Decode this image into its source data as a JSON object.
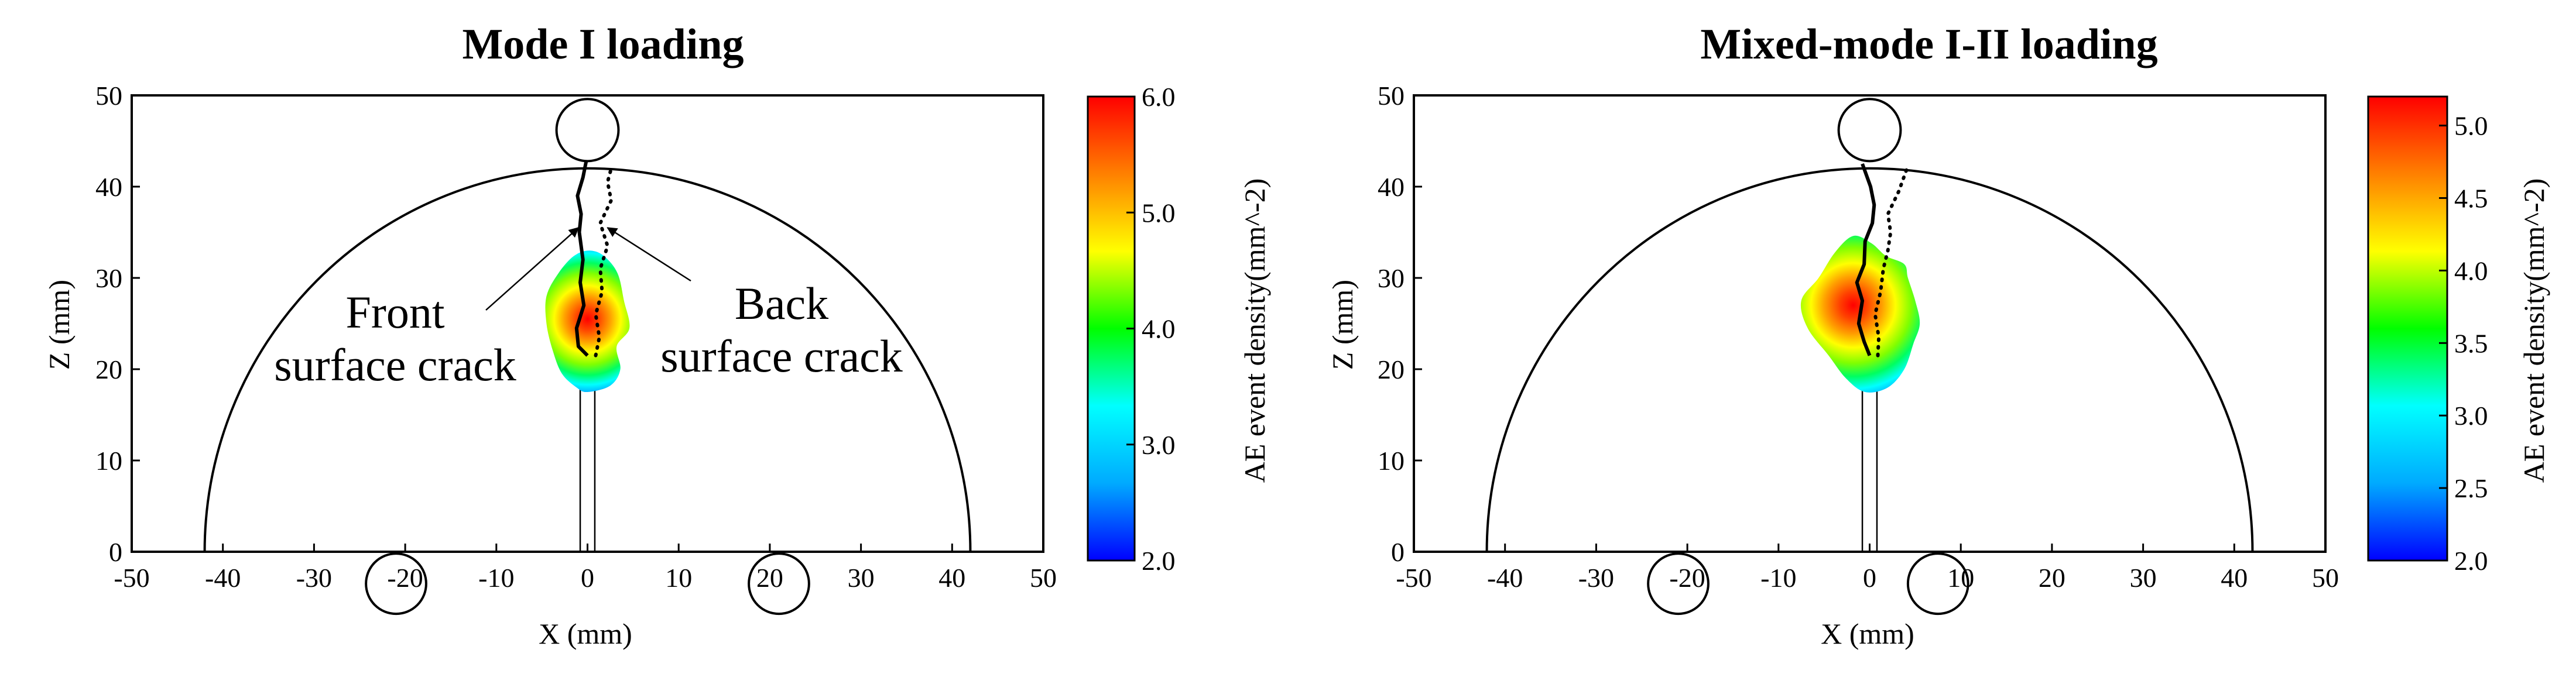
{
  "chart_data": [
    {
      "type": "contour",
      "title": "Mode I loading",
      "xlabel": "X (mm)",
      "ylabel": "Z (mm)",
      "xlim": [
        -50,
        50
      ],
      "ylim": [
        0,
        50
      ],
      "xticks": [
        -50,
        -40,
        -30,
        -20,
        -10,
        0,
        10,
        20,
        30,
        40,
        50
      ],
      "yticks": [
        0,
        10,
        20,
        30,
        40,
        50
      ],
      "specimen_radius": 42,
      "loading_roller": {
        "x": 0,
        "z": 46.2,
        "r": 3.4
      },
      "support_rollers": [
        {
          "x": -21,
          "z": -3.5,
          "r": 3.3
        },
        {
          "x": 21,
          "z": -3.5,
          "r": 3.3
        }
      ],
      "notch": {
        "x_left": -0.8,
        "x_right": 0.8,
        "z_top": 21.5
      },
      "front_crack": [
        [
          0,
          21.5
        ],
        [
          -1,
          22.5
        ],
        [
          -1.2,
          24.5
        ],
        [
          -0.4,
          27
        ],
        [
          -0.8,
          29.5
        ],
        [
          -0.5,
          32
        ],
        [
          -0.9,
          35
        ],
        [
          -0.7,
          37
        ],
        [
          -1.1,
          39
        ],
        [
          -0.5,
          41
        ],
        [
          -0.1,
          43
        ]
      ],
      "back_crack": [
        [
          0.9,
          21.5
        ],
        [
          1.3,
          23.5
        ],
        [
          0.9,
          26
        ],
        [
          1.6,
          28.5
        ],
        [
          1.4,
          31
        ],
        [
          2.2,
          33.5
        ],
        [
          1.4,
          36
        ],
        [
          2.6,
          38.5
        ],
        [
          2.2,
          40.5
        ],
        [
          2.6,
          42
        ]
      ],
      "density_hotspot": {
        "x": 0,
        "z": 25.5,
        "peak": 6.0
      },
      "density_outline": [
        [
          0,
          17.5
        ],
        [
          2.5,
          18.2
        ],
        [
          3.6,
          20
        ],
        [
          3.2,
          22.5
        ],
        [
          4.6,
          24.5
        ],
        [
          4,
          27.5
        ],
        [
          3.3,
          30.5
        ],
        [
          1.8,
          32.4
        ],
        [
          0.2,
          33
        ],
        [
          -1.5,
          32.4
        ],
        [
          -3.2,
          30.5
        ],
        [
          -4.5,
          28
        ],
        [
          -4.5,
          25
        ],
        [
          -3.8,
          22
        ],
        [
          -2.8,
          19.5
        ],
        [
          -1.2,
          18
        ]
      ],
      "annotations": [
        {
          "lines": [
            "Front",
            "surface crack"
          ],
          "arrow_to": {
            "x": -1.0,
            "z": 35.5
          }
        },
        {
          "lines": [
            "Back",
            "surface crack"
          ],
          "arrow_to": {
            "x": 2.2,
            "z": 35.5
          }
        }
      ],
      "colorbar": {
        "label": "AE event density(mm^-2)",
        "min": 2.0,
        "max": 6.0,
        "ticks": [
          "2.0",
          "3.0",
          "4.0",
          "5.0",
          "6.0"
        ],
        "colors": [
          "#0000ff",
          "#00aaff",
          "#00ffff",
          "#00ff00",
          "#ffff00",
          "#ff8000",
          "#ff0000"
        ]
      }
    },
    {
      "type": "contour",
      "title": "Mixed-mode I-II loading",
      "xlabel": "X (mm)",
      "ylabel": "Z (mm)",
      "xlim": [
        -50,
        50
      ],
      "ylim": [
        0,
        50
      ],
      "xticks": [
        -50,
        -40,
        -30,
        -20,
        -10,
        0,
        10,
        20,
        30,
        40,
        50
      ],
      "yticks": [
        0,
        10,
        20,
        30,
        40,
        50
      ],
      "specimen_radius": 42,
      "loading_roller": {
        "x": 0,
        "z": 46.2,
        "r": 3.4
      },
      "support_rollers": [
        {
          "x": -21,
          "z": -3.5,
          "r": 3.3
        },
        {
          "x": 7.5,
          "z": -3.5,
          "r": 3.3
        }
      ],
      "notch": {
        "x_left": -0.8,
        "x_right": 0.8,
        "z_top": 21.5
      },
      "front_crack": [
        [
          0,
          21.5
        ],
        [
          -0.6,
          23
        ],
        [
          -1.2,
          25
        ],
        [
          -0.8,
          27.5
        ],
        [
          -1.4,
          29.5
        ],
        [
          -0.6,
          31.5
        ],
        [
          -0.5,
          34
        ],
        [
          0.3,
          36
        ],
        [
          0.5,
          38
        ],
        [
          0.1,
          40
        ],
        [
          -0.8,
          42.5
        ]
      ],
      "back_crack": [
        [
          0.9,
          21.5
        ],
        [
          1.0,
          23.5
        ],
        [
          0.6,
          26
        ],
        [
          1.2,
          28.5
        ],
        [
          1.5,
          31
        ],
        [
          2.0,
          33
        ],
        [
          2.3,
          35
        ],
        [
          2.0,
          37
        ],
        [
          3.2,
          39.5
        ],
        [
          4.1,
          42
        ]
      ],
      "density_hotspot": {
        "x": -1.8,
        "z": 27,
        "peak": 5.2
      },
      "density_outline": [
        [
          -0.5,
          17.5
        ],
        [
          2,
          18
        ],
        [
          3.8,
          20
        ],
        [
          4.8,
          22.8
        ],
        [
          5.5,
          25
        ],
        [
          5,
          27.5
        ],
        [
          4.2,
          30
        ],
        [
          3.8,
          31.5
        ],
        [
          1.8,
          32.4
        ],
        [
          0.2,
          33.8
        ],
        [
          -1.8,
          34.6
        ],
        [
          -3.8,
          32.8
        ],
        [
          -5.6,
          30
        ],
        [
          -7.5,
          27.5
        ],
        [
          -6.8,
          24.5
        ],
        [
          -4.5,
          21.5
        ],
        [
          -2.6,
          19
        ]
      ],
      "annotations": [],
      "colorbar": {
        "label": "AE event density(mm^-2)",
        "min": 2.0,
        "max": 5.2,
        "ticks": [
          "2.0",
          "2.5",
          "3.0",
          "3.5",
          "4.0",
          "4.5",
          "5.0"
        ],
        "colors": [
          "#0000ff",
          "#00aaff",
          "#00ffff",
          "#00ff00",
          "#ffff00",
          "#ff8000",
          "#ff0000"
        ]
      }
    }
  ]
}
